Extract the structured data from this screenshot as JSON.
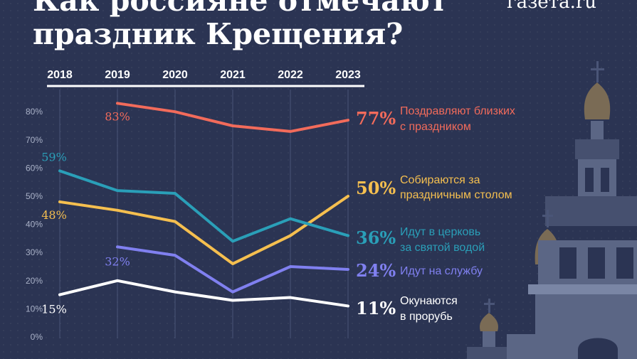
{
  "header": {
    "title_line1": "Как россияне отмечают",
    "title_line2": "праздник Крещения?",
    "logo": "газета.ru"
  },
  "colors": {
    "background": "#2b3453",
    "grid": "#4a5577",
    "text": "#ffffff",
    "tick": "#aab2c8"
  },
  "chart_data": {
    "type": "line",
    "x": [
      "2018",
      "2019",
      "2020",
      "2021",
      "2022",
      "2023"
    ],
    "ylim": [
      0,
      85
    ],
    "yticks": [
      "0%",
      "10%",
      "20%",
      "30%",
      "40%",
      "50%",
      "60%",
      "70%",
      "80%"
    ],
    "grid": "vertical",
    "legend": "labels at line ends on the right",
    "series": [
      {
        "name_line1": "Поздравляют близких",
        "name_line2": "с праздником",
        "color": "#f26b5b",
        "values": [
          null,
          83,
          80,
          75,
          73,
          77
        ],
        "first_label": "83%",
        "last_label": "77%"
      },
      {
        "name_line1": "Собираются за",
        "name_line2": "праздничным столом",
        "color": "#f5bf4f",
        "values": [
          48,
          45,
          41,
          26,
          36,
          50
        ],
        "first_label": "48%",
        "last_label": "50%"
      },
      {
        "name_line1": "Идут в церковь",
        "name_line2": "за святой водой",
        "color": "#2a9fb8",
        "values": [
          59,
          52,
          51,
          34,
          42,
          36
        ],
        "first_label": "59%",
        "last_label": "36%"
      },
      {
        "name_line1": "Идут на службу",
        "name_line2": "",
        "color": "#8080f0",
        "values": [
          null,
          32,
          29,
          16,
          25,
          24
        ],
        "first_label": "32%",
        "last_label": "24%"
      },
      {
        "name_line1": "Окунаются",
        "name_line2": "в прорубь",
        "color": "#ffffff",
        "values": [
          15,
          20,
          16,
          13,
          14,
          11
        ],
        "first_label": "15%",
        "last_label": "11%"
      }
    ]
  }
}
